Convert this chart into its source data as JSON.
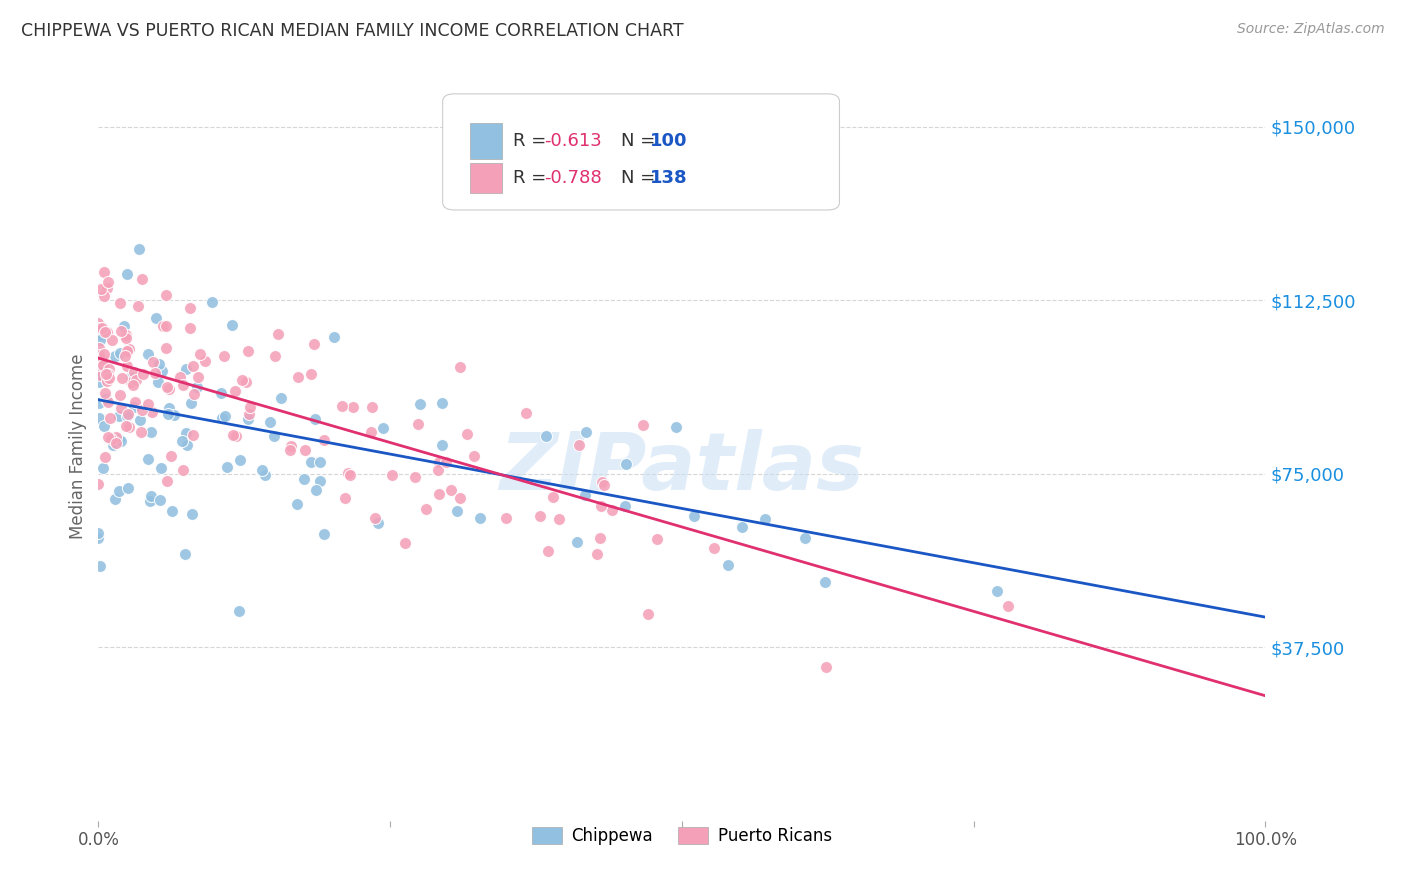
{
  "title": "CHIPPEWA VS PUERTO RICAN MEDIAN FAMILY INCOME CORRELATION CHART",
  "source": "Source: ZipAtlas.com",
  "ylabel": "Median Family Income",
  "watermark": "ZIPatlas",
  "chippewa": {
    "R": -0.613,
    "N": 100,
    "color": "#92c0e0",
    "line_color": "#1a56c4",
    "label": "Chippewa",
    "line_y0": 91000,
    "line_y1": 44000
  },
  "puerto_rican": {
    "R": -0.788,
    "N": 138,
    "color": "#f4a0b8",
    "line_color": "#e03070",
    "label": "Puerto Ricans",
    "line_y0": 100000,
    "line_y1": 27000
  },
  "yticks": [
    0,
    37500,
    75000,
    112500,
    150000
  ],
  "ytick_labels": [
    "",
    "$37,500",
    "$75,000",
    "$112,500",
    "$150,000"
  ],
  "ymin": 0,
  "ymax": 162000,
  "xmin": 0,
  "xmax": 100,
  "grid_color": "#cccccc",
  "bg_color": "#ffffff",
  "title_color": "#333333",
  "source_color": "#999999",
  "R_label_color": "#333333",
  "N_label_color": "#1a56c4",
  "ytick_color": "#1a8fe0"
}
